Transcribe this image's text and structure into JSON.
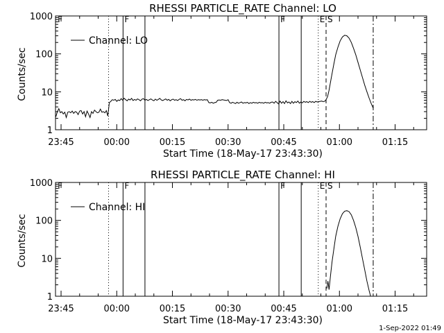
{
  "footer": "1-Sep-2022 01:49",
  "chart_data": [
    {
      "type": "line",
      "title": "RHESSI PARTICLE_RATE Channel: LO",
      "xlabel": "Start Time (18-May-17 23:43:30)",
      "ylabel": "Counts/sec",
      "yscale": "log",
      "ylim": [
        1,
        1000
      ],
      "xlim_minutes": [
        -1.5,
        98.5
      ],
      "xticks": [
        {
          "t": 0,
          "label": "23:45"
        },
        {
          "t": 15,
          "label": "00:00"
        },
        {
          "t": 30,
          "label": "00:15"
        },
        {
          "t": 45,
          "label": "00:30"
        },
        {
          "t": 60,
          "label": "00:45"
        },
        {
          "t": 75,
          "label": "01:00"
        },
        {
          "t": 90,
          "label": "01:15"
        }
      ],
      "yticks": [
        {
          "v": 1,
          "label": "1"
        },
        {
          "v": 10,
          "label": "10"
        },
        {
          "v": 100,
          "label": "100"
        },
        {
          "v": 1000,
          "label": "1000"
        }
      ],
      "legend": {
        "label": "Channel: LO",
        "position": "top-left"
      },
      "markers": [
        {
          "t": 16.7,
          "style": "solid",
          "flag": "F"
        },
        {
          "t": 22.6,
          "style": "solid",
          "flag": ""
        },
        {
          "t": 58.7,
          "style": "solid",
          "flag": "F"
        },
        {
          "t": 64.7,
          "style": "solid",
          "flag": ""
        },
        {
          "t": 12.8,
          "style": "dotted",
          "flag": ""
        },
        {
          "t": 69.3,
          "style": "dotted",
          "flag": "E"
        },
        {
          "t": 71.4,
          "style": "dashed",
          "flag": "S"
        },
        {
          "t": 84.1,
          "style": "dashdot",
          "flag": ""
        },
        {
          "t": -1.3,
          "style": "none",
          "flag": "F"
        }
      ],
      "series": [
        {
          "points": [
            [
              -1.4,
              2.2
            ],
            [
              -1.0,
              3.0
            ],
            [
              -0.6,
              3.6
            ],
            [
              -0.2,
              2.8
            ],
            [
              0.2,
              3.0
            ],
            [
              0.6,
              2.6
            ],
            [
              1.0,
              2.9
            ],
            [
              1.4,
              2.1
            ],
            [
              1.8,
              2.9
            ],
            [
              2.2,
              3.0
            ],
            [
              2.6,
              2.8
            ],
            [
              3.0,
              3.1
            ],
            [
              3.4,
              2.7
            ],
            [
              3.8,
              3.0
            ],
            [
              4.2,
              2.9
            ],
            [
              4.6,
              2.5
            ],
            [
              5.0,
              3.1
            ],
            [
              5.4,
              3.2
            ],
            [
              5.8,
              2.6
            ],
            [
              6.2,
              3.0
            ],
            [
              6.6,
              2.2
            ],
            [
              7.0,
              3.1
            ],
            [
              7.4,
              2.6
            ],
            [
              7.8,
              2.1
            ],
            [
              8.2,
              3.0
            ],
            [
              8.6,
              2.7
            ],
            [
              9.0,
              3.3
            ],
            [
              9.4,
              3.0
            ],
            [
              9.8,
              2.8
            ],
            [
              10.2,
              2.9
            ],
            [
              10.6,
              3.5
            ],
            [
              11.0,
              2.9
            ],
            [
              11.4,
              3.0
            ],
            [
              11.8,
              2.8
            ],
            [
              12.2,
              3.2
            ],
            [
              12.6,
              2.3
            ],
            [
              13.0,
              5.2
            ],
            [
              13.4,
              5.6
            ],
            [
              13.8,
              6.2
            ],
            [
              14.2,
              6.0
            ],
            [
              14.6,
              6.3
            ],
            [
              15.0,
              5.6
            ],
            [
              15.4,
              6.1
            ],
            [
              15.8,
              5.9
            ],
            [
              16.2,
              6.6
            ],
            [
              16.6,
              6.0
            ],
            [
              17.0,
              6.8
            ],
            [
              17.4,
              6.2
            ],
            [
              17.8,
              5.8
            ],
            [
              18.2,
              6.4
            ],
            [
              18.6,
              6.1
            ],
            [
              19.0,
              6.7
            ],
            [
              19.4,
              5.9
            ],
            [
              19.8,
              6.3
            ],
            [
              20.2,
              6.0
            ],
            [
              20.6,
              6.5
            ],
            [
              21.0,
              6.2
            ],
            [
              21.4,
              5.8
            ],
            [
              21.8,
              6.4
            ],
            [
              22.2,
              6.6
            ],
            [
              22.6,
              6.0
            ],
            [
              23.0,
              6.3
            ],
            [
              23.4,
              5.9
            ],
            [
              23.8,
              6.2
            ],
            [
              24.2,
              6.5
            ],
            [
              24.6,
              6.1
            ],
            [
              25.0,
              5.8
            ],
            [
              25.4,
              6.4
            ],
            [
              25.8,
              6.0
            ],
            [
              26.2,
              6.3
            ],
            [
              26.6,
              6.7
            ],
            [
              27.0,
              6.1
            ],
            [
              27.4,
              5.9
            ],
            [
              27.8,
              6.2
            ],
            [
              28.2,
              6.5
            ],
            [
              28.6,
              6.0
            ],
            [
              29.0,
              6.3
            ],
            [
              29.4,
              5.8
            ],
            [
              29.8,
              6.2
            ],
            [
              30.2,
              6.4
            ],
            [
              30.6,
              6.0
            ],
            [
              31.0,
              6.2
            ],
            [
              31.4,
              5.9
            ],
            [
              31.8,
              6.3
            ],
            [
              32.2,
              6.6
            ],
            [
              32.6,
              6.0
            ],
            [
              33.0,
              6.2
            ],
            [
              33.4,
              5.8
            ],
            [
              33.8,
              6.3
            ],
            [
              34.2,
              6.1
            ],
            [
              34.6,
              6.4
            ],
            [
              35.0,
              6.0
            ],
            [
              35.4,
              6.2
            ],
            [
              35.8,
              6.1
            ],
            [
              36.2,
              6.3
            ],
            [
              36.6,
              6.0
            ],
            [
              37.0,
              6.2
            ],
            [
              37.4,
              6.1
            ],
            [
              37.8,
              6.2
            ],
            [
              38.2,
              6.0
            ],
            [
              38.6,
              6.2
            ],
            [
              39.0,
              6.1
            ],
            [
              39.4,
              6.2
            ],
            [
              39.8,
              5.2
            ],
            [
              40.2,
              5.1
            ],
            [
              40.6,
              5.3
            ],
            [
              41.0,
              5.0
            ],
            [
              41.4,
              5.2
            ],
            [
              41.8,
              5.3
            ],
            [
              42.2,
              6.0
            ],
            [
              42.6,
              6.1
            ],
            [
              43.0,
              6.0
            ],
            [
              43.4,
              6.2
            ],
            [
              43.8,
              6.1
            ],
            [
              44.2,
              6.0
            ],
            [
              44.6,
              5.9
            ],
            [
              45.0,
              6.2
            ],
            [
              45.4,
              5.2
            ],
            [
              45.8,
              5.0
            ],
            [
              46.2,
              5.3
            ],
            [
              46.6,
              5.1
            ],
            [
              47.0,
              4.9
            ],
            [
              47.4,
              5.3
            ],
            [
              47.8,
              5.0
            ],
            [
              48.2,
              5.2
            ],
            [
              48.6,
              5.4
            ],
            [
              49.0,
              5.0
            ],
            [
              49.4,
              5.2
            ],
            [
              49.8,
              5.1
            ],
            [
              50.2,
              5.3
            ],
            [
              50.6,
              4.9
            ],
            [
              51.0,
              5.2
            ],
            [
              51.4,
              5.0
            ],
            [
              51.8,
              5.3
            ],
            [
              52.2,
              5.1
            ],
            [
              52.6,
              5.2
            ],
            [
              53.0,
              5.0
            ],
            [
              53.4,
              5.3
            ],
            [
              53.8,
              5.1
            ],
            [
              54.2,
              5.2
            ],
            [
              54.6,
              5.0
            ],
            [
              55.0,
              5.3
            ],
            [
              55.4,
              5.1
            ],
            [
              55.8,
              5.2
            ],
            [
              56.2,
              5.0
            ],
            [
              56.6,
              5.3
            ],
            [
              57.0,
              5.4
            ],
            [
              57.4,
              5.0
            ],
            [
              57.8,
              5.6
            ],
            [
              58.2,
              5.2
            ],
            [
              58.6,
              4.8
            ],
            [
              59.0,
              5.7
            ],
            [
              59.4,
              5.0
            ],
            [
              59.8,
              5.5
            ],
            [
              60.2,
              4.9
            ],
            [
              60.6,
              5.8
            ],
            [
              61.0,
              5.1
            ],
            [
              61.4,
              5.4
            ],
            [
              61.8,
              4.9
            ],
            [
              62.2,
              5.6
            ],
            [
              62.6,
              5.0
            ],
            [
              63.0,
              5.5
            ],
            [
              63.4,
              5.2
            ],
            [
              63.8,
              5.7
            ],
            [
              64.2,
              5.0
            ],
            [
              64.6,
              5.4
            ],
            [
              65.0,
              5.1
            ],
            [
              65.4,
              5.6
            ],
            [
              65.8,
              5.3
            ],
            [
              66.2,
              5.5
            ],
            [
              66.6,
              5.2
            ],
            [
              67.0,
              5.6
            ],
            [
              67.4,
              5.3
            ],
            [
              67.8,
              5.5
            ],
            [
              68.2,
              5.2
            ],
            [
              68.6,
              5.6
            ],
            [
              69.0,
              5.4
            ],
            [
              69.4,
              5.5
            ],
            [
              69.8,
              5.6
            ],
            [
              70.2,
              5.7
            ],
            [
              70.6,
              5.5
            ],
            [
              71.0,
              5.6
            ],
            [
              71.4,
              6.2
            ],
            [
              71.8,
              7.5
            ],
            [
              72.2,
              11
            ],
            [
              72.6,
              18
            ],
            [
              73.0,
              30
            ],
            [
              73.5,
              55
            ],
            [
              74.0,
              95
            ],
            [
              74.6,
              150
            ],
            [
              75.2,
              220
            ],
            [
              75.8,
              280
            ],
            [
              76.4,
              310
            ],
            [
              77.0,
              300
            ],
            [
              77.6,
              260
            ],
            [
              78.2,
              200
            ],
            [
              78.8,
              140
            ],
            [
              79.4,
              95
            ],
            [
              80.0,
              60
            ],
            [
              80.6,
              38
            ],
            [
              81.2,
              24
            ],
            [
              81.8,
              15
            ],
            [
              82.4,
              10
            ],
            [
              83.0,
              6.8
            ],
            [
              83.6,
              4.8
            ],
            [
              84.1,
              3.7
            ]
          ]
        }
      ]
    },
    {
      "type": "line",
      "title": "RHESSI PARTICLE_RATE Channel: HI",
      "xlabel": "Start Time (18-May-17 23:43:30)",
      "ylabel": "Counts/sec",
      "yscale": "log",
      "ylim": [
        1,
        1000
      ],
      "xlim_minutes": [
        -1.5,
        98.5
      ],
      "xticks": [
        {
          "t": 0,
          "label": "23:45"
        },
        {
          "t": 15,
          "label": "00:00"
        },
        {
          "t": 30,
          "label": "00:15"
        },
        {
          "t": 45,
          "label": "00:30"
        },
        {
          "t": 60,
          "label": "00:45"
        },
        {
          "t": 75,
          "label": "01:00"
        },
        {
          "t": 90,
          "label": "01:15"
        }
      ],
      "yticks": [
        {
          "v": 1,
          "label": "1"
        },
        {
          "v": 10,
          "label": "10"
        },
        {
          "v": 100,
          "label": "100"
        },
        {
          "v": 1000,
          "label": "1000"
        }
      ],
      "legend": {
        "label": "Channel: HI",
        "position": "top-left"
      },
      "markers": [
        {
          "t": 16.7,
          "style": "solid",
          "flag": "F"
        },
        {
          "t": 22.6,
          "style": "solid",
          "flag": ""
        },
        {
          "t": 58.7,
          "style": "solid",
          "flag": "F"
        },
        {
          "t": 64.7,
          "style": "solid",
          "flag": ""
        },
        {
          "t": 12.8,
          "style": "dotted",
          "flag": ""
        },
        {
          "t": 69.3,
          "style": "dotted",
          "flag": "E"
        },
        {
          "t": 71.4,
          "style": "dashed",
          "flag": "S"
        },
        {
          "t": 84.1,
          "style": "dashdot",
          "flag": ""
        },
        {
          "t": -1.3,
          "style": "none",
          "flag": "F"
        }
      ],
      "series": [
        {
          "points": [
            [
              71.6,
              1.6
            ],
            [
              71.9,
              2.5
            ],
            [
              72.2,
              1.5
            ],
            [
              72.6,
              3.5
            ],
            [
              73.0,
              8
            ],
            [
              73.5,
              18
            ],
            [
              74.0,
              38
            ],
            [
              74.6,
              70
            ],
            [
              75.2,
              110
            ],
            [
              75.8,
              150
            ],
            [
              76.4,
              175
            ],
            [
              77.0,
              180
            ],
            [
              77.6,
              170
            ],
            [
              78.2,
              140
            ],
            [
              78.8,
              100
            ],
            [
              79.4,
              65
            ],
            [
              80.0,
              38
            ],
            [
              80.6,
              20
            ],
            [
              81.2,
              10
            ],
            [
              81.8,
              5
            ],
            [
              82.4,
              2.5
            ],
            [
              83.0,
              1.4
            ],
            [
              83.4,
              1.0
            ]
          ]
        }
      ]
    }
  ]
}
